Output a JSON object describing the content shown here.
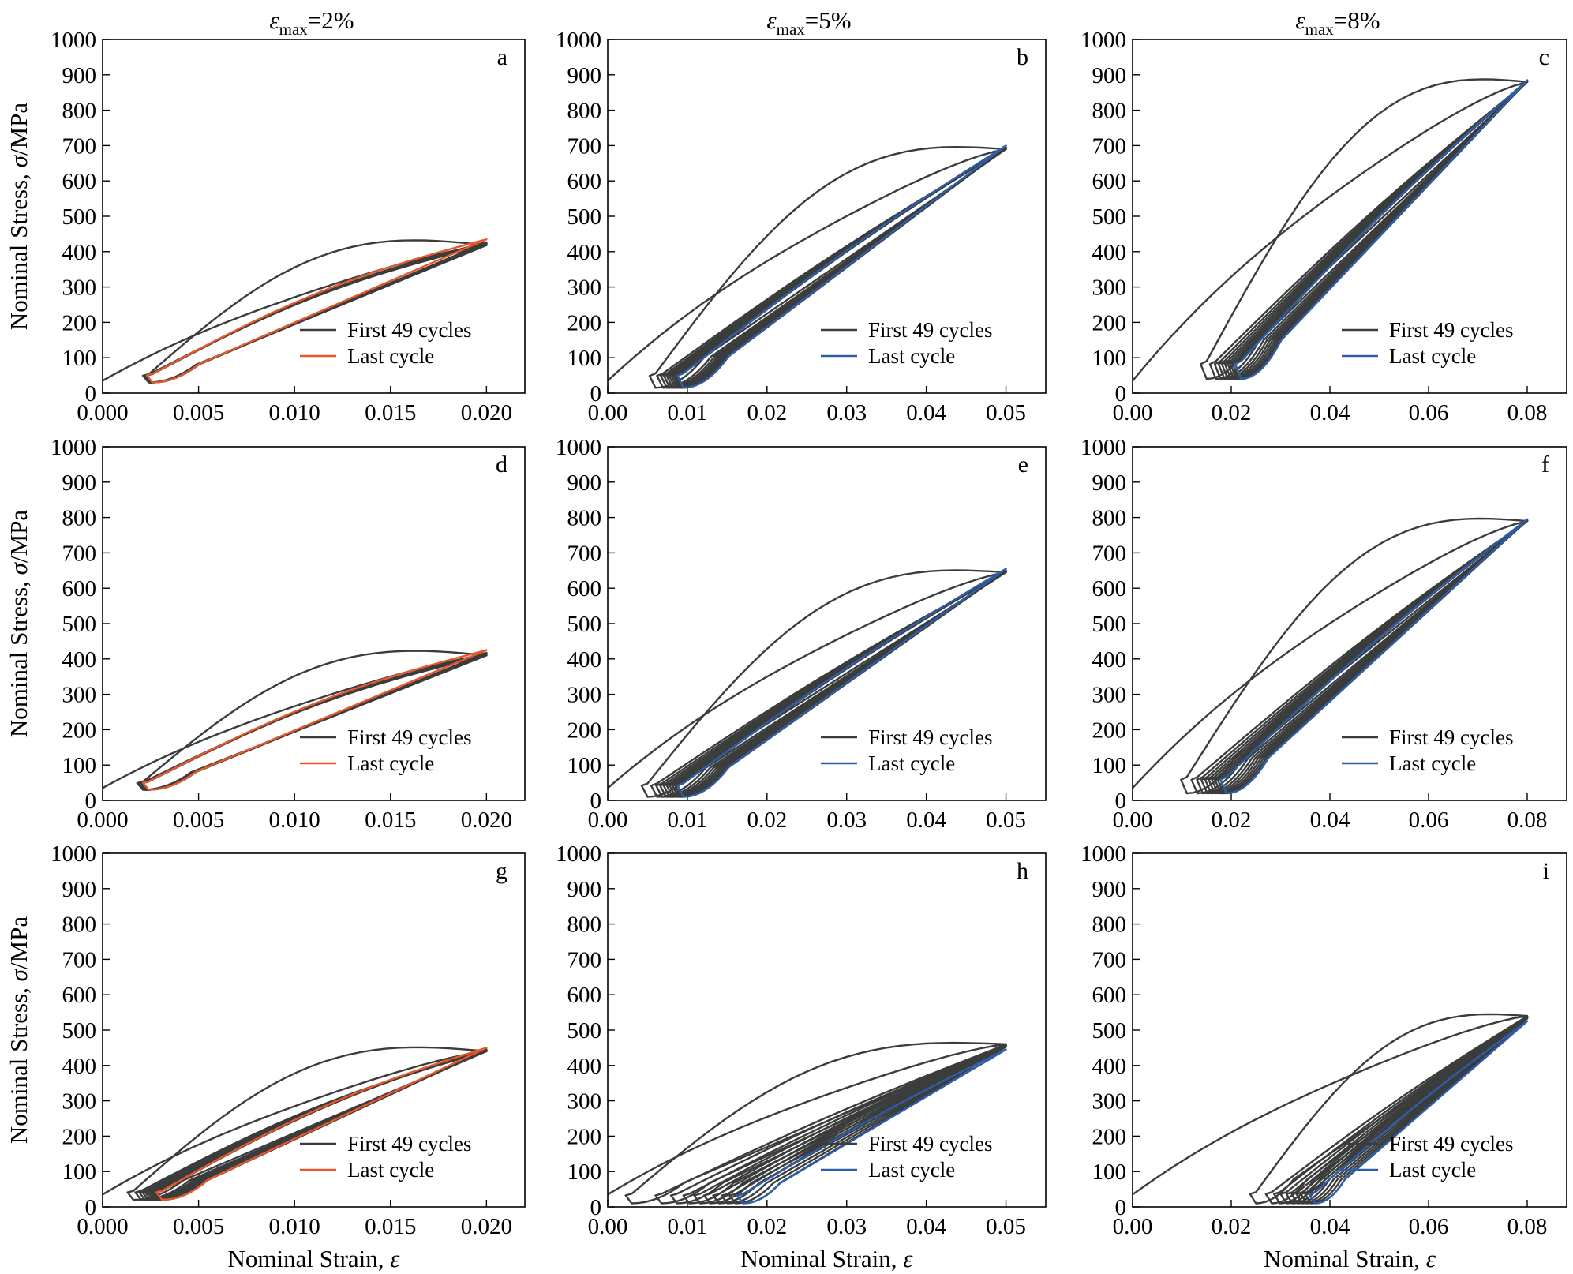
{
  "colors": {
    "first_cycles": "#3b3d3d",
    "last_cycle_orange": "#e8582b",
    "last_cycle_blue": "#2e5da9"
  },
  "column_titles": [
    {
      "symbol": "ε",
      "subscript": "max",
      "value": "=2%"
    },
    {
      "symbol": "ε",
      "subscript": "max",
      "value": "=5%"
    },
    {
      "symbol": "ε",
      "subscript": "max",
      "value": "=8%"
    }
  ],
  "ylabel": {
    "prefix": "Nominal Stress, ",
    "symbol": "σ",
    "suffix": "/MPa"
  },
  "xlabel": {
    "prefix": "Nominal Strain, ",
    "symbol": "ε"
  },
  "chart_data": [
    {
      "id": "a",
      "type": "line",
      "letter": "a",
      "emax": 0.02,
      "xlim": [
        0,
        0.022
      ],
      "ylim": [
        0,
        1000
      ],
      "xticks": [
        "0.000",
        "0.005",
        "0.010",
        "0.015",
        "0.020"
      ],
      "yticks": [
        "0",
        "100",
        "200",
        "300",
        "400",
        "500",
        "600",
        "700",
        "800",
        "900",
        "1000"
      ],
      "peak_first": 418,
      "peak_last": 435,
      "res_first": 0.0024,
      "res_last": 0.0026,
      "min_stress": 30,
      "cycles": 49,
      "last_color": "orange",
      "hump": 20,
      "legend": [
        "First 49 cycles",
        "Last cycle"
      ],
      "show_ylabel": true,
      "show_xlabel": false
    },
    {
      "id": "b",
      "type": "line",
      "letter": "b",
      "emax": 0.05,
      "xlim": [
        0,
        0.055
      ],
      "ylim": [
        0,
        1000
      ],
      "xticks": [
        "0.00",
        "0.01",
        "0.02",
        "0.03",
        "0.04",
        "0.05"
      ],
      "yticks": [
        "0",
        "100",
        "200",
        "300",
        "400",
        "500",
        "600",
        "700",
        "800",
        "900",
        "1000"
      ],
      "peak_first": 690,
      "peak_last": 700,
      "res_first": 0.006,
      "res_last": 0.0095,
      "min_stress": 15,
      "cycles": 49,
      "last_color": "blue",
      "hump": 0,
      "legend": [
        "First 49 cycles",
        "Last cycle"
      ],
      "show_ylabel": false,
      "show_xlabel": false
    },
    {
      "id": "c",
      "type": "line",
      "letter": "c",
      "emax": 0.08,
      "xlim": [
        0,
        0.088
      ],
      "ylim": [
        0,
        1000
      ],
      "xticks": [
        "0.00",
        "0.02",
        "0.04",
        "0.06",
        "0.08"
      ],
      "yticks": [
        "0",
        "100",
        "200",
        "300",
        "400",
        "500",
        "600",
        "700",
        "800",
        "900",
        "1000"
      ],
      "peak_first": 880,
      "peak_last": 885,
      "res_first": 0.015,
      "res_last": 0.022,
      "min_stress": 40,
      "cycles": 49,
      "last_color": "blue",
      "hump": 0,
      "legend": [
        "First 49 cycles",
        "Last cycle"
      ],
      "show_ylabel": false,
      "show_xlabel": false
    },
    {
      "id": "d",
      "type": "line",
      "letter": "d",
      "emax": 0.02,
      "xlim": [
        0,
        0.022
      ],
      "ylim": [
        0,
        1000
      ],
      "xticks": [
        "0.000",
        "0.005",
        "0.010",
        "0.015",
        "0.020"
      ],
      "yticks": [
        "0",
        "100",
        "200",
        "300",
        "400",
        "500",
        "600",
        "700",
        "800",
        "900",
        "1000"
      ],
      "peak_first": 410,
      "peak_last": 425,
      "res_first": 0.0021,
      "res_last": 0.0024,
      "min_stress": 30,
      "cycles": 49,
      "last_color": "orange",
      "hump": 18,
      "legend": [
        "First 49 cycles",
        "Last cycle"
      ],
      "show_ylabel": true,
      "show_xlabel": false
    },
    {
      "id": "e",
      "type": "line",
      "letter": "e",
      "emax": 0.05,
      "xlim": [
        0,
        0.055
      ],
      "ylim": [
        0,
        1000
      ],
      "xticks": [
        "0.00",
        "0.01",
        "0.02",
        "0.03",
        "0.04",
        "0.05"
      ],
      "yticks": [
        "0",
        "100",
        "200",
        "300",
        "400",
        "500",
        "600",
        "700",
        "800",
        "900",
        "1000"
      ],
      "peak_first": 645,
      "peak_last": 655,
      "res_first": 0.005,
      "res_last": 0.0095,
      "min_stress": 10,
      "cycles": 49,
      "last_color": "blue",
      "hump": 0,
      "legend": [
        "First 49 cycles",
        "Last cycle"
      ],
      "show_ylabel": false,
      "show_xlabel": false
    },
    {
      "id": "f",
      "type": "line",
      "letter": "f",
      "emax": 0.08,
      "xlim": [
        0,
        0.088
      ],
      "ylim": [
        0,
        1000
      ],
      "xticks": [
        "0.00",
        "0.02",
        "0.04",
        "0.06",
        "0.08"
      ],
      "yticks": [
        "0",
        "100",
        "200",
        "300",
        "400",
        "500",
        "600",
        "700",
        "800",
        "900",
        "1000"
      ],
      "peak_first": 790,
      "peak_last": 795,
      "res_first": 0.011,
      "res_last": 0.019,
      "min_stress": 20,
      "cycles": 49,
      "last_color": "blue",
      "hump": 0,
      "legend": [
        "First 49 cycles",
        "Last cycle"
      ],
      "show_ylabel": false,
      "show_xlabel": false
    },
    {
      "id": "g",
      "type": "line",
      "letter": "g",
      "emax": 0.02,
      "xlim": [
        0,
        0.022
      ],
      "ylim": [
        0,
        1000
      ],
      "xticks": [
        "0.000",
        "0.005",
        "0.010",
        "0.015",
        "0.020"
      ],
      "yticks": [
        "0",
        "100",
        "200",
        "300",
        "400",
        "500",
        "600",
        "700",
        "800",
        "900",
        "1000"
      ],
      "peak_first": 440,
      "peak_last": 450,
      "res_first": 0.0016,
      "res_last": 0.0031,
      "min_stress": 20,
      "cycles": 49,
      "last_color": "orange",
      "hump": 15,
      "legend": [
        "First 49 cycles",
        "Last cycle"
      ],
      "show_ylabel": true,
      "show_xlabel": true
    },
    {
      "id": "h",
      "type": "line",
      "letter": "h",
      "emax": 0.05,
      "xlim": [
        0,
        0.055
      ],
      "ylim": [
        0,
        1000
      ],
      "xticks": [
        "0.00",
        "0.01",
        "0.02",
        "0.03",
        "0.04",
        "0.05"
      ],
      "yticks": [
        "0",
        "100",
        "200",
        "300",
        "400",
        "500",
        "600",
        "700",
        "800",
        "900",
        "1000"
      ],
      "peak_first": 460,
      "peak_last": 445,
      "res_first": 0.003,
      "res_last": 0.017,
      "min_stress": 10,
      "cycles": 49,
      "last_color": "blue",
      "hump": 0,
      "legend": [
        "First 49 cycles",
        "Last cycle"
      ],
      "show_ylabel": false,
      "show_xlabel": true
    },
    {
      "id": "i",
      "type": "line",
      "letter": "i",
      "emax": 0.08,
      "xlim": [
        0,
        0.088
      ],
      "ylim": [
        0,
        1000
      ],
      "xticks": [
        "0.00",
        "0.02",
        "0.04",
        "0.06",
        "0.08"
      ],
      "yticks": [
        "0",
        "100",
        "200",
        "300",
        "400",
        "500",
        "600",
        "700",
        "800",
        "900",
        "1000"
      ],
      "peak_first": 540,
      "peak_last": 525,
      "res_first": 0.025,
      "res_last": 0.037,
      "min_stress": 10,
      "cycles": 49,
      "last_color": "blue",
      "hump": 0,
      "legend": [
        "First 49 cycles",
        "Last cycle"
      ],
      "show_ylabel": false,
      "show_xlabel": true
    }
  ]
}
